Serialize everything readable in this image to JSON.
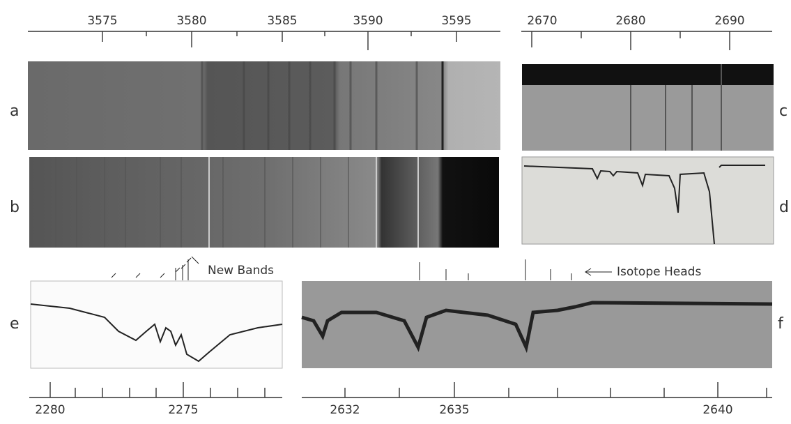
{
  "scales": {
    "top_left": [
      "3575",
      "3580",
      "3585",
      "3590",
      "3595"
    ],
    "top_right": [
      "2670",
      "2680",
      "2690"
    ],
    "bottom_left": [
      "2280",
      "2275"
    ],
    "bottom_right": [
      "2632",
      "2635",
      "2640"
    ]
  },
  "panels": [
    "a",
    "b",
    "c",
    "d",
    "e",
    "f"
  ],
  "annotations": {
    "new_bands": "New Bands",
    "isotope_heads": "Isotope Heads"
  }
}
